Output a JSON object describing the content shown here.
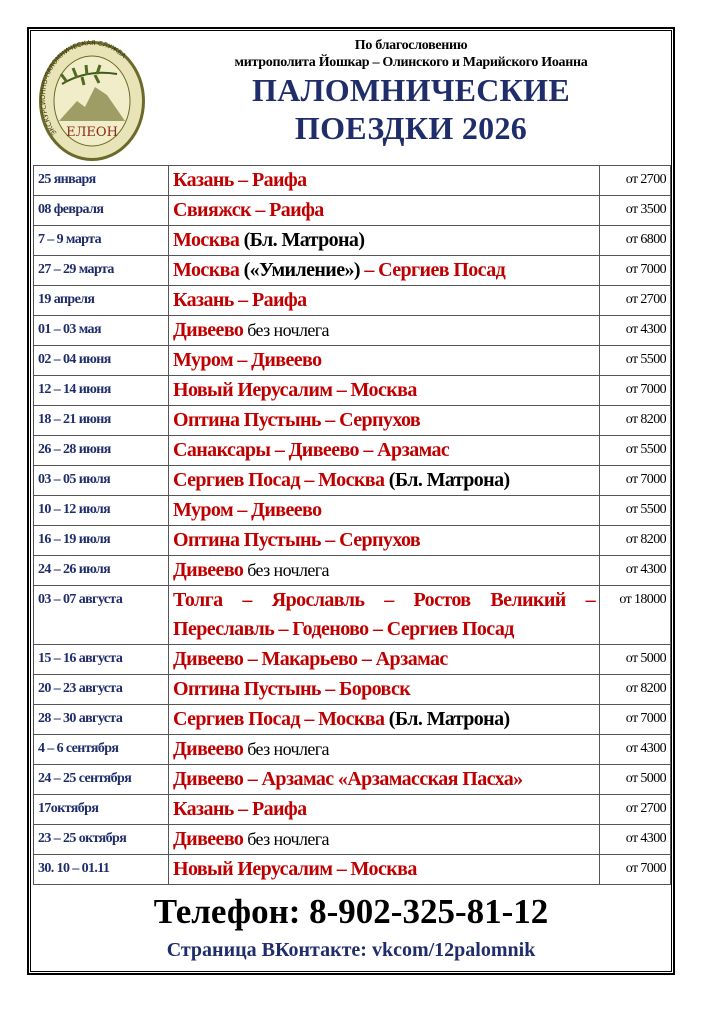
{
  "header": {
    "logo_text": "ЕЛЕОН",
    "logo_ring_text": "ЭКСКУРСИОННО-ПАЛОМНИЧЕСКАЯ СЛУЖБА",
    "blessing_line1": "По благословению",
    "blessing_line2": "митрополита Йошкар – Олинского и Марийского Иоанна",
    "title_line1": "ПАЛОМНИЧЕСКИЕ",
    "title_line2": "ПОЕЗДКИ 2026"
  },
  "colors": {
    "route": "#c00000",
    "date": "#1f2d6b",
    "title": "#1f2d6b"
  },
  "trips": [
    {
      "date": "25 января",
      "route": [
        {
          "t": "Казань – Раифа",
          "s": "r"
        }
      ],
      "price": "от 2700"
    },
    {
      "date": "08 февраля",
      "route": [
        {
          "t": "Свияжск – Раифа",
          "s": "r"
        }
      ],
      "price": "от 3500"
    },
    {
      "date": "7 – 9 марта",
      "route": [
        {
          "t": "Москва",
          "s": "r"
        },
        {
          "t": " (Бл. Матрона)",
          "s": "b"
        }
      ],
      "price": "от 6800"
    },
    {
      "date": "27 – 29 марта",
      "route": [
        {
          "t": "Москва",
          "s": "r"
        },
        {
          "t": " («Умиление»)",
          "s": "b"
        },
        {
          "t": " – Сергиев Посад",
          "s": "r"
        }
      ],
      "price": "от 7000"
    },
    {
      "date": "19 апреля",
      "route": [
        {
          "t": "Казань – Раифа",
          "s": "r"
        }
      ],
      "price": "от 2700"
    },
    {
      "date": "01 – 03 мая",
      "route": [
        {
          "t": "Дивеево",
          "s": "r"
        },
        {
          "t": " без ночлега",
          "s": "n"
        }
      ],
      "price": "от 4300"
    },
    {
      "date": "02 – 04 июня",
      "route": [
        {
          "t": "Муром – Дивеево",
          "s": "r"
        }
      ],
      "price": "от 5500"
    },
    {
      "date": "12 – 14 июня",
      "route": [
        {
          "t": "Новый Иерусалим – Москва",
          "s": "r"
        }
      ],
      "price": "от 7000"
    },
    {
      "date": "18 – 21 июня",
      "route": [
        {
          "t": "Оптина Пустынь – Серпухов",
          "s": "r"
        }
      ],
      "price": "от 8200"
    },
    {
      "date": "26 – 28 июня",
      "route": [
        {
          "t": "Санаксары – Дивеево – Арзамас",
          "s": "r"
        }
      ],
      "price": "от 5500"
    },
    {
      "date": "03 – 05 июля",
      "route": [
        {
          "t": "Сергиев Посад – Москва",
          "s": "r"
        },
        {
          "t": " (Бл. Матрона)",
          "s": "b"
        }
      ],
      "price": "от 7000"
    },
    {
      "date": "10 – 12 июля",
      "route": [
        {
          "t": "Муром – Дивеево",
          "s": "r"
        }
      ],
      "price": "от 5500"
    },
    {
      "date": "16 – 19 июля",
      "route": [
        {
          "t": "Оптина Пустынь – Серпухов",
          "s": "r"
        }
      ],
      "price": "от 8200"
    },
    {
      "date": "24 – 26 июля",
      "route": [
        {
          "t": "Дивеево",
          "s": "r"
        },
        {
          "t": " без ночлега",
          "s": "n"
        }
      ],
      "price": "от 4300"
    },
    {
      "date": "03 – 07 августа",
      "route": [
        {
          "t": "Толга – Ярославль – Ростов Великий – Переславль – Годеново – Сергиев Посад",
          "s": "r"
        }
      ],
      "price": "от 18000"
    },
    {
      "date": "15 – 16 августа",
      "route": [
        {
          "t": "Дивеево – Макарьево – Арзамас",
          "s": "r"
        }
      ],
      "price": "от 5000"
    },
    {
      "date": "20 – 23 августа",
      "route": [
        {
          "t": "Оптина Пустынь – Боровск",
          "s": "r"
        }
      ],
      "price": "от 8200"
    },
    {
      "date": "28 – 30 августа",
      "route": [
        {
          "t": "Сергиев Посад – Москва",
          "s": "r"
        },
        {
          "t": " (Бл. Матрона)",
          "s": "b"
        }
      ],
      "price": "от 7000"
    },
    {
      "date": "4 – 6 сентября",
      "route": [
        {
          "t": "Дивеево",
          "s": "r"
        },
        {
          "t": " без ночлега",
          "s": "n"
        }
      ],
      "price": "от 4300"
    },
    {
      "date": "24 – 25 сентября",
      "route": [
        {
          "t": "Дивеево – Арзамас «Арзамасская Пасха»",
          "s": "r"
        }
      ],
      "price": "от 5000"
    },
    {
      "date": "17октября",
      "route": [
        {
          "t": "Казань – Раифа",
          "s": "r"
        }
      ],
      "price": "от 2700"
    },
    {
      "date": "23 – 25 октября",
      "route": [
        {
          "t": "Дивеево",
          "s": "r"
        },
        {
          "t": " без ночлега",
          "s": "n"
        }
      ],
      "price": "от 4300"
    },
    {
      "date": "30. 10 – 01.11",
      "route": [
        {
          "t": "Новый Иерусалим – Москва",
          "s": "r"
        }
      ],
      "price": "от 7000"
    }
  ],
  "footer": {
    "phone": "Телефон: 8-902-325-81-12",
    "vk": "Страница ВКонтакте: vkcom/12palomnik"
  }
}
